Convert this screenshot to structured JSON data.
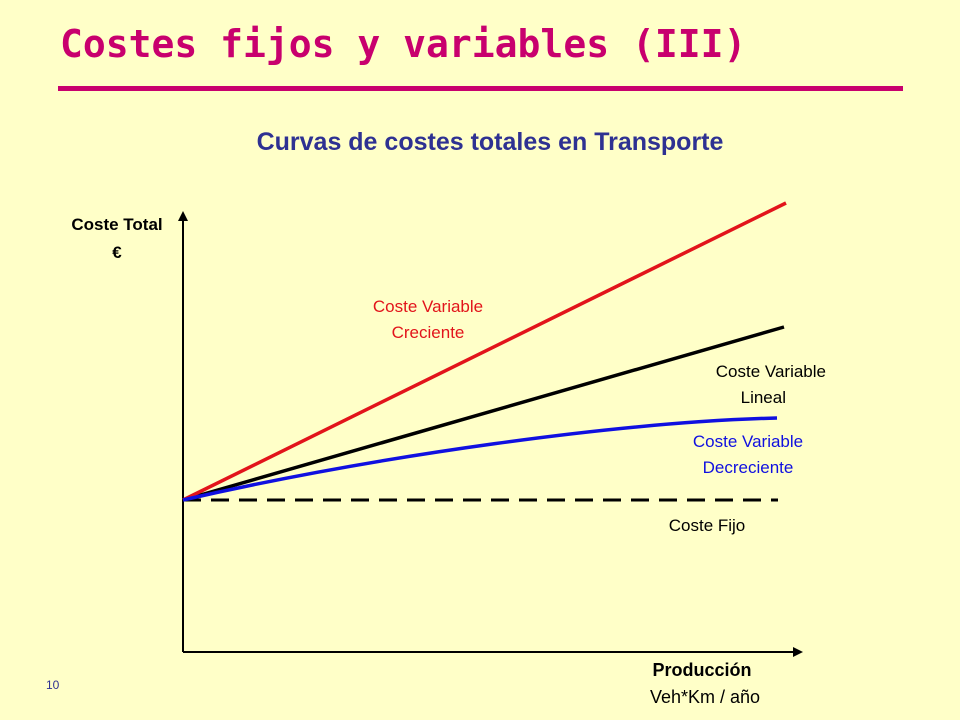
{
  "slide": {
    "title": "Costes fijos y variables (III)",
    "subtitle": "Curvas de costes totales en Transporte",
    "page_number": "10"
  },
  "colors": {
    "accent": "#C8006E",
    "subtitle": "#2E3192",
    "background": "#FFFFC8",
    "creciente": "#E2141B",
    "lineal": "#000000",
    "decreciente": "#1010E0",
    "fijo": "#000000"
  },
  "diagram": {
    "y_axis": {
      "label_line1": "Coste Total",
      "label_line2": "€"
    },
    "x_axis": {
      "label_line1": "Producción",
      "label_line2": "Veh*Km / año"
    },
    "curves": {
      "creciente": {
        "line1": "Coste Variable",
        "line2": "Creciente"
      },
      "lineal": {
        "line1": "Coste Variable",
        "line2": "Lineal"
      },
      "decreciente": {
        "line1": "Coste Variable",
        "line2": "Decreciente"
      },
      "fijo": {
        "line1": "Coste Fijo"
      }
    }
  }
}
